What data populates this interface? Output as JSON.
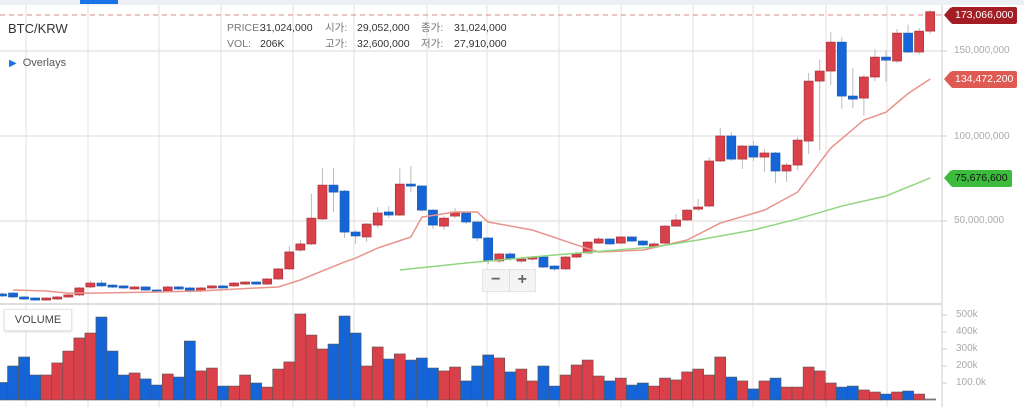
{
  "symbol": "BTC/KRW",
  "info": {
    "price_label": "PRICE:",
    "price": "31,024,000",
    "vol_label": "VOL:",
    "vol": "206K",
    "open_label": "시가:",
    "open": "29,052,000",
    "high_label": "고가:",
    "high": "32,600,000",
    "close_label": "종가:",
    "close": "31,024,000",
    "low_label": "저가:",
    "low": "27,910,000"
  },
  "overlays_label": "Overlays",
  "volume_label": "VOLUME",
  "zoom": {
    "minus": "−",
    "plus": "+"
  },
  "colors": {
    "up": "#d9404a",
    "down": "#1565d8",
    "ma_short": "#e8948c",
    "ma_long": "#8fd67f",
    "last_tag": "#a51d24",
    "ma_short_tag": "#df5a52",
    "ma_long_tag": "#3dbb3d"
  },
  "chart_data": {
    "type": "candlestick",
    "price_unit": "million KRW",
    "price_axis_ticks": [
      "50,000,000",
      "100,000,000",
      "150,000,000"
    ],
    "price_tick_values": [
      50,
      100,
      150
    ],
    "volume_axis_ticks": [
      "100.0k",
      "200k",
      "300k",
      "400k",
      "500k"
    ],
    "volume_tick_values": [
      100,
      200,
      300,
      400,
      500
    ],
    "last_price_label": "173,066,000",
    "last_price": 173.066,
    "ma_short_label": "134,472,200",
    "ma_short_value": 134.4722,
    "ma_long_label": "75,676,600",
    "ma_long_value": 75.6766,
    "candles": [
      [
        7.1,
        5.9,
        7.8,
        5.3
      ],
      [
        7.6,
        5.3,
        8.2,
        4.7
      ],
      [
        5.3,
        4.1,
        5.9,
        3.5
      ],
      [
        4.7,
        3.5,
        5.3,
        2.9
      ],
      [
        3.5,
        4.7,
        5.3,
        2.9
      ],
      [
        4.1,
        5.3,
        5.9,
        3.5
      ],
      [
        5.3,
        6.5,
        7.1,
        4.7
      ],
      [
        6.5,
        10.6,
        11.2,
        5.9
      ],
      [
        11.2,
        13.5,
        14.7,
        10.6
      ],
      [
        13.5,
        11.8,
        15.3,
        11.2
      ],
      [
        12.3,
        11.2,
        12.9,
        10.6
      ],
      [
        11.8,
        10.6,
        12.3,
        10.0
      ],
      [
        10.0,
        11.2,
        11.8,
        9.4
      ],
      [
        11.2,
        9.4,
        11.8,
        8.8
      ],
      [
        9.4,
        8.2,
        10.0,
        7.6
      ],
      [
        8.8,
        11.2,
        11.8,
        8.2
      ],
      [
        11.2,
        10.0,
        11.8,
        9.4
      ],
      [
        10.6,
        8.8,
        11.2,
        7.6
      ],
      [
        8.8,
        10.6,
        11.2,
        8.2
      ],
      [
        10.6,
        11.8,
        12.3,
        10.0
      ],
      [
        11.8,
        11.2,
        12.3,
        10.6
      ],
      [
        11.8,
        13.5,
        14.1,
        11.2
      ],
      [
        12.9,
        14.1,
        14.7,
        12.3
      ],
      [
        14.1,
        12.9,
        14.7,
        12.3
      ],
      [
        12.9,
        15.9,
        16.5,
        12.3
      ],
      [
        15.9,
        21.8,
        22.4,
        15.3
      ],
      [
        21.8,
        31.8,
        35.3,
        21.2
      ],
      [
        32.9,
        36.5,
        38.8,
        31.8
      ],
      [
        36.5,
        51.7,
        65.9,
        35.9
      ],
      [
        51.2,
        71.1,
        81.1,
        50.6
      ],
      [
        71.1,
        67.0,
        81.1,
        55.3
      ],
      [
        67.6,
        43.5,
        68.2,
        40.0
      ],
      [
        43.5,
        41.2,
        44.7,
        36.5
      ],
      [
        40.6,
        48.2,
        48.8,
        37.6
      ],
      [
        47.6,
        54.7,
        58.2,
        45.9
      ],
      [
        55.3,
        53.5,
        58.8,
        51.7
      ],
      [
        53.5,
        71.7,
        81.1,
        52.9
      ],
      [
        71.7,
        70.6,
        82.3,
        67.0
      ],
      [
        70.6,
        56.4,
        71.1,
        55.3
      ],
      [
        56.4,
        47.6,
        57.0,
        45.3
      ],
      [
        47.0,
        51.7,
        52.9,
        44.7
      ],
      [
        52.9,
        55.3,
        57.6,
        51.7
      ],
      [
        54.7,
        49.4,
        55.3,
        48.2
      ],
      [
        49.4,
        40.0,
        50.0,
        38.2
      ],
      [
        40.0,
        26.5,
        40.6,
        24.7
      ],
      [
        26.5,
        30.6,
        31.2,
        25.3
      ],
      [
        30.6,
        27.6,
        31.8,
        26.5
      ],
      [
        26.5,
        27.6,
        28.8,
        25.3
      ],
      [
        27.6,
        28.8,
        29.4,
        26.5
      ],
      [
        28.8,
        22.9,
        29.4,
        22.4
      ],
      [
        23.5,
        21.8,
        24.1,
        20.6
      ],
      [
        21.8,
        28.8,
        29.4,
        21.2
      ],
      [
        28.8,
        30.6,
        31.8,
        28.2
      ],
      [
        31.2,
        37.6,
        38.2,
        30.6
      ],
      [
        37.0,
        39.4,
        40.6,
        36.5
      ],
      [
        39.4,
        36.5,
        40.0,
        35.9
      ],
      [
        37.0,
        40.6,
        41.2,
        36.5
      ],
      [
        40.6,
        38.2,
        41.2,
        37.6
      ],
      [
        38.2,
        35.9,
        38.8,
        35.3
      ],
      [
        34.7,
        36.5,
        37.6,
        34.1
      ],
      [
        37.0,
        47.0,
        47.6,
        36.5
      ],
      [
        47.0,
        50.6,
        54.1,
        46.5
      ],
      [
        50.6,
        56.4,
        57.0,
        50.0
      ],
      [
        57.0,
        58.2,
        62.9,
        55.9
      ],
      [
        58.8,
        85.3,
        87.6,
        58.2
      ],
      [
        85.3,
        100.0,
        104.7,
        84.7
      ],
      [
        100.0,
        86.4,
        102.3,
        85.3
      ],
      [
        86.4,
        94.1,
        94.7,
        80.6
      ],
      [
        94.1,
        87.6,
        97.0,
        85.3
      ],
      [
        87.6,
        90.0,
        92.3,
        78.8
      ],
      [
        90.0,
        79.4,
        90.6,
        72.3
      ],
      [
        79.4,
        82.9,
        84.1,
        72.9
      ],
      [
        82.9,
        97.6,
        99.4,
        80.0
      ],
      [
        97.0,
        132.3,
        137.0,
        89.4
      ],
      [
        132.3,
        138.2,
        145.0,
        91.7
      ],
      [
        138.2,
        155.2,
        161.0,
        130.0
      ],
      [
        155.2,
        123.5,
        158.0,
        116.0
      ],
      [
        123.5,
        121.7,
        140.0,
        116.4
      ],
      [
        122.3,
        134.7,
        136.0,
        112.0
      ],
      [
        134.7,
        146.4,
        151.0,
        132.3
      ],
      [
        146.4,
        144.6,
        150.5,
        132.0
      ],
      [
        144.1,
        160.5,
        163.0,
        143.0
      ],
      [
        160.5,
        149.4,
        165.5,
        148.8
      ],
      [
        149.4,
        161.7,
        163.5,
        148.0
      ],
      [
        161.7,
        173.1,
        174.0,
        160.0
      ]
    ],
    "volumes": [
      [
        103,
        "down"
      ],
      [
        200,
        "down"
      ],
      [
        253,
        "down"
      ],
      [
        147,
        "down"
      ],
      [
        147,
        "up"
      ],
      [
        218,
        "up"
      ],
      [
        288,
        "up"
      ],
      [
        365,
        "up"
      ],
      [
        394,
        "up"
      ],
      [
        488,
        "down"
      ],
      [
        288,
        "down"
      ],
      [
        147,
        "down"
      ],
      [
        159,
        "up"
      ],
      [
        124,
        "down"
      ],
      [
        88,
        "down"
      ],
      [
        153,
        "up"
      ],
      [
        135,
        "down"
      ],
      [
        347,
        "down"
      ],
      [
        171,
        "up"
      ],
      [
        188,
        "up"
      ],
      [
        82,
        "down"
      ],
      [
        82,
        "up"
      ],
      [
        147,
        "up"
      ],
      [
        100,
        "down"
      ],
      [
        76,
        "up"
      ],
      [
        182,
        "up"
      ],
      [
        224,
        "up"
      ],
      [
        506,
        "up"
      ],
      [
        382,
        "up"
      ],
      [
        300,
        "up"
      ],
      [
        329,
        "down"
      ],
      [
        494,
        "down"
      ],
      [
        394,
        "down"
      ],
      [
        200,
        "up"
      ],
      [
        312,
        "up"
      ],
      [
        241,
        "down"
      ],
      [
        271,
        "up"
      ],
      [
        235,
        "down"
      ],
      [
        247,
        "down"
      ],
      [
        188,
        "down"
      ],
      [
        171,
        "up"
      ],
      [
        194,
        "up"
      ],
      [
        112,
        "down"
      ],
      [
        200,
        "down"
      ],
      [
        265,
        "down"
      ],
      [
        247,
        "up"
      ],
      [
        165,
        "down"
      ],
      [
        182,
        "up"
      ],
      [
        112,
        "up"
      ],
      [
        200,
        "down"
      ],
      [
        82,
        "down"
      ],
      [
        147,
        "up"
      ],
      [
        206,
        "up"
      ],
      [
        235,
        "up"
      ],
      [
        141,
        "up"
      ],
      [
        112,
        "down"
      ],
      [
        129,
        "up"
      ],
      [
        88,
        "down"
      ],
      [
        100,
        "down"
      ],
      [
        82,
        "up"
      ],
      [
        129,
        "up"
      ],
      [
        118,
        "up"
      ],
      [
        165,
        "up"
      ],
      [
        182,
        "up"
      ],
      [
        147,
        "up"
      ],
      [
        253,
        "up"
      ],
      [
        135,
        "down"
      ],
      [
        112,
        "up"
      ],
      [
        65,
        "down"
      ],
      [
        112,
        "up"
      ],
      [
        129,
        "down"
      ],
      [
        76,
        "up"
      ],
      [
        76,
        "up"
      ],
      [
        194,
        "up"
      ],
      [
        171,
        "up"
      ],
      [
        100,
        "up"
      ],
      [
        76,
        "down"
      ],
      [
        82,
        "down"
      ],
      [
        59,
        "up"
      ],
      [
        47,
        "up"
      ],
      [
        35,
        "down"
      ],
      [
        47,
        "up"
      ],
      [
        53,
        "down"
      ],
      [
        35,
        "up"
      ],
      [
        6,
        "flat"
      ]
    ],
    "ma_short": [
      [
        1,
        9.4
      ],
      [
        4,
        8.8
      ],
      [
        6,
        7.6
      ],
      [
        8,
        7.6
      ],
      [
        14,
        8.2
      ],
      [
        18,
        8.8
      ],
      [
        23,
        10.6
      ],
      [
        25,
        11.2
      ],
      [
        27,
        15.3
      ],
      [
        29,
        20.6
      ],
      [
        31,
        25.9
      ],
      [
        32,
        28.2
      ],
      [
        34,
        34.1
      ],
      [
        37,
        40.6
      ],
      [
        38,
        52.3
      ],
      [
        41,
        55.3
      ],
      [
        43,
        55.3
      ],
      [
        44,
        49.4
      ],
      [
        48,
        44.7
      ],
      [
        52,
        35.9
      ],
      [
        54,
        31.8
      ],
      [
        58,
        32.9
      ],
      [
        62,
        38.8
      ],
      [
        65,
        48.8
      ],
      [
        69,
        56.4
      ],
      [
        72,
        67.0
      ],
      [
        75,
        92.9
      ],
      [
        78,
        109.4
      ],
      [
        80,
        114.0
      ],
      [
        82,
        125.0
      ],
      [
        84,
        133.5
      ]
    ],
    "ma_long": [
      [
        36,
        21.2
      ],
      [
        42,
        25.3
      ],
      [
        50,
        30.0
      ],
      [
        59,
        34.7
      ],
      [
        63,
        38.8
      ],
      [
        68,
        44.7
      ],
      [
        72,
        51.2
      ],
      [
        76,
        58.8
      ],
      [
        80,
        64.7
      ],
      [
        84,
        75.3
      ]
    ]
  }
}
